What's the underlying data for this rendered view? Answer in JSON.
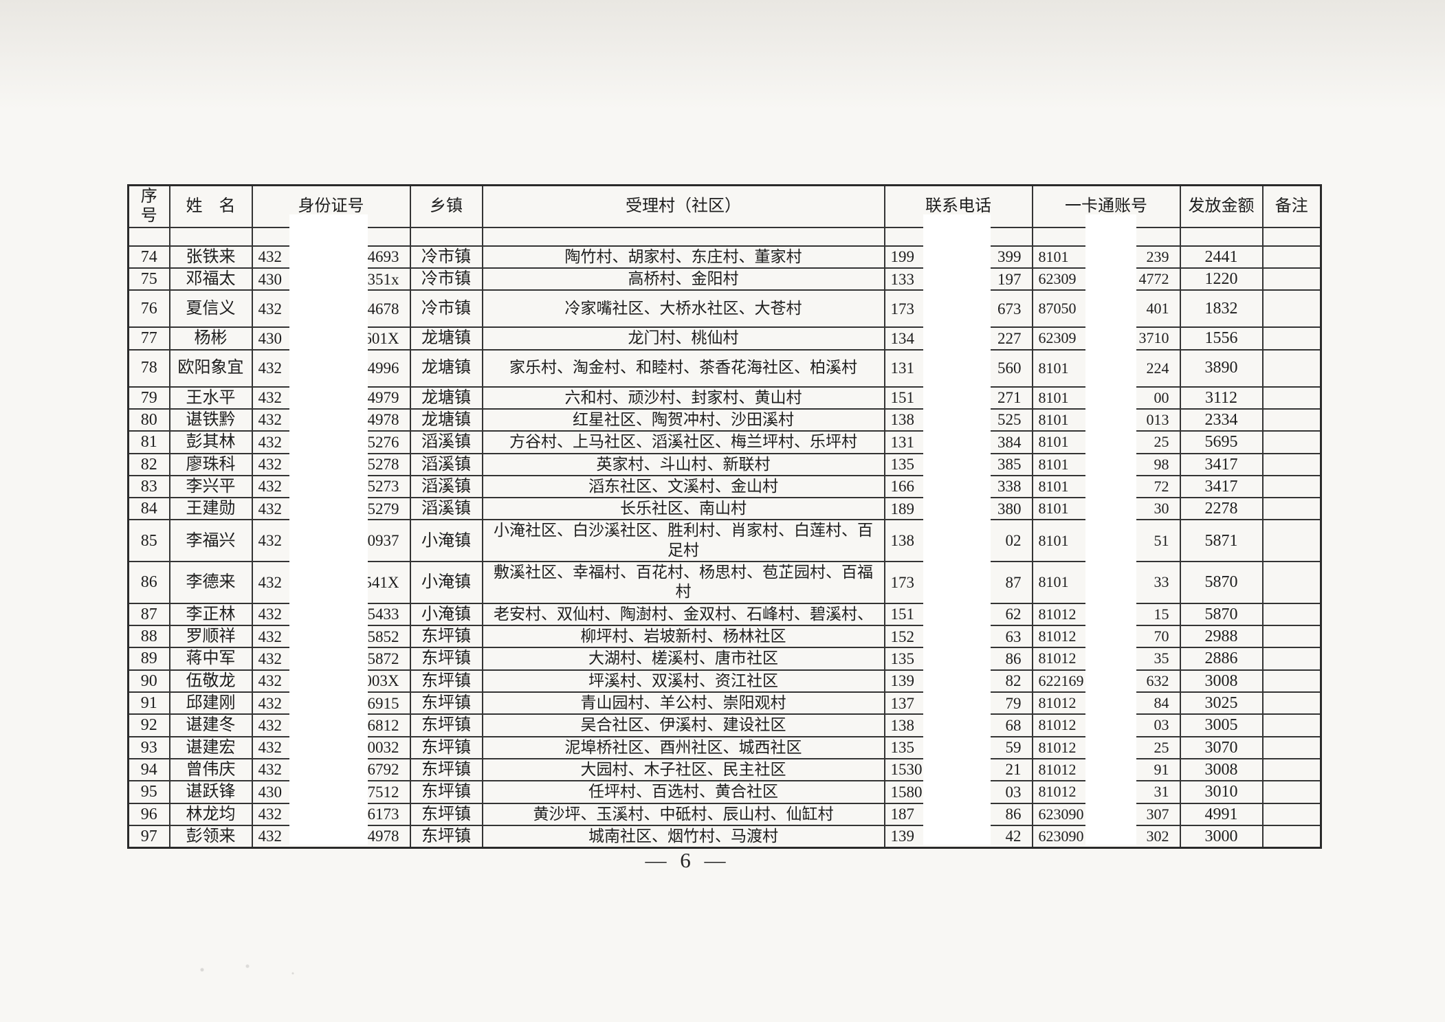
{
  "document": {
    "page_label": "— 6 —"
  },
  "table": {
    "headers": [
      "序号",
      "姓　名",
      "身份证号",
      "乡镇",
      "受理村（社区）",
      "联系电话",
      "一卡通账号",
      "发放金额",
      "备注"
    ],
    "rows": [
      {
        "no": "74",
        "name": "张铁来",
        "id_left": "432",
        "id_right": "4693",
        "township": "冷市镇",
        "villages": "陶竹村、胡家村、东庄村、董家村",
        "phone_left": "199",
        "phone_right": "399",
        "card_left": "8101",
        "card_right": "239",
        "amount": "2441",
        "note": ""
      },
      {
        "no": "75",
        "name": "邓福太",
        "id_left": "430",
        "id_right": "351x",
        "township": "冷市镇",
        "villages": "高桥村、金阳村",
        "phone_left": "133",
        "phone_right": "197",
        "card_left": "62309",
        "card_right": "4772",
        "amount": "1220",
        "note": ""
      },
      {
        "no": "76",
        "name": "夏信义",
        "id_left": "432",
        "id_right": "4678",
        "township": "冷市镇",
        "villages": "冷家嘴社区、大桥水社区、大苍村",
        "phone_left": "173",
        "phone_right": "673",
        "card_left": "87050",
        "card_right": "401",
        "amount": "1832",
        "note": "",
        "tall": true
      },
      {
        "no": "77",
        "name": "杨彬",
        "id_left": "430",
        "id_right": "601X",
        "township": "龙塘镇",
        "villages": "龙门村、桃仙村",
        "phone_left": "134",
        "phone_right": "227",
        "card_left": "62309",
        "card_right": "3710",
        "amount": "1556",
        "note": ""
      },
      {
        "no": "78",
        "name": "欧阳象宜",
        "id_left": "432",
        "id_right": "4996",
        "township": "龙塘镇",
        "villages": "家乐村、淘金村、和睦村、茶香花海社区、柏溪村",
        "phone_left": "131",
        "phone_right": "560",
        "card_left": "8101",
        "card_right": "224",
        "amount": "3890",
        "note": "",
        "tall": true
      },
      {
        "no": "79",
        "name": "王水平",
        "id_left": "432",
        "id_right": "4979",
        "township": "龙塘镇",
        "villages": "六和村、顽沙村、封家村、黄山村",
        "phone_left": "151",
        "phone_right": "271",
        "card_left": "8101",
        "card_right": "00",
        "amount": "3112",
        "note": ""
      },
      {
        "no": "80",
        "name": "谌铁黔",
        "id_left": "432",
        "id_right": "4978",
        "township": "龙塘镇",
        "villages": "红星社区、陶贺冲村、沙田溪村",
        "phone_left": "138",
        "phone_right": "525",
        "card_left": "8101",
        "card_right": "013",
        "amount": "2334",
        "note": ""
      },
      {
        "no": "81",
        "name": "彭其林",
        "id_left": "432",
        "id_right": "5276",
        "township": "滔溪镇",
        "villages": "方谷村、上马社区、滔溪社区、梅兰坪村、乐坪村",
        "phone_left": "131",
        "phone_right": "384",
        "card_left": "8101",
        "card_right": "25",
        "amount": "5695",
        "note": ""
      },
      {
        "no": "82",
        "name": "廖珠科",
        "id_left": "432",
        "id_right": "5278",
        "township": "滔溪镇",
        "villages": "英家村、斗山村、新联村",
        "phone_left": "135",
        "phone_right": "385",
        "card_left": "8101",
        "card_right": "98",
        "amount": "3417",
        "note": ""
      },
      {
        "no": "83",
        "name": "李兴平",
        "id_left": "432",
        "id_right": "5273",
        "township": "滔溪镇",
        "villages": "滔东社区、文溪村、金山村",
        "phone_left": "166",
        "phone_right": "338",
        "card_left": "8101",
        "card_right": "72",
        "amount": "3417",
        "note": ""
      },
      {
        "no": "84",
        "name": "王建勋",
        "id_left": "432",
        "id_right": "5279",
        "township": "滔溪镇",
        "villages": "长乐社区、南山村",
        "phone_left": "189",
        "phone_right": "380",
        "card_left": "8101",
        "card_right": "30",
        "amount": "2278",
        "note": ""
      },
      {
        "no": "85",
        "name": "李福兴",
        "id_left": "432",
        "id_right": "0937",
        "township": "小淹镇",
        "villages": "小淹社区、白沙溪社区、胜利村、肖家村、白莲村、百足村",
        "phone_left": "138",
        "phone_right": "02",
        "card_left": "8101",
        "card_right": "51",
        "amount": "5871",
        "note": ""
      },
      {
        "no": "86",
        "name": "李德来",
        "id_left": "432",
        "id_right": "541X",
        "township": "小淹镇",
        "villages": "敷溪社区、幸福村、百花村、杨思村、苞芷园村、百福村",
        "phone_left": "173",
        "phone_right": "87",
        "card_left": "8101",
        "card_right": "33",
        "amount": "5870",
        "note": ""
      },
      {
        "no": "87",
        "name": "李正林",
        "id_left": "432",
        "id_right": "5433",
        "township": "小淹镇",
        "villages": "老安村、双仙村、陶澍村、金双村、石峰村、碧溪村、",
        "phone_left": "151",
        "phone_right": "62",
        "card_left": "81012",
        "card_right": "15",
        "amount": "5870",
        "note": ""
      },
      {
        "no": "88",
        "name": "罗顺祥",
        "id_left": "432",
        "id_right": "5852",
        "township": "东坪镇",
        "villages": "柳坪村、岩坡新村、杨林社区",
        "phone_left": "152",
        "phone_right": "63",
        "card_left": "81012",
        "card_right": "70",
        "amount": "2988",
        "note": ""
      },
      {
        "no": "89",
        "name": "蒋中军",
        "id_left": "432",
        "id_right": "5872",
        "township": "东坪镇",
        "villages": "大湖村、槎溪村、唐市社区",
        "phone_left": "135",
        "phone_right": "86",
        "card_left": "81012",
        "card_right": "35",
        "amount": "2886",
        "note": ""
      },
      {
        "no": "90",
        "name": "伍敬龙",
        "id_left": "432",
        "id_right": "003X",
        "township": "东坪镇",
        "villages": "坪溪村、双溪村、资江社区",
        "phone_left": "139",
        "phone_right": "82",
        "card_left": "622169",
        "card_right": "632",
        "amount": "3008",
        "note": ""
      },
      {
        "no": "91",
        "name": "邱建刚",
        "id_left": "432",
        "id_right": "6915",
        "township": "东坪镇",
        "villages": "青山园村、羊公村、崇阳观村",
        "phone_left": "137",
        "phone_right": "79",
        "card_left": "81012",
        "card_right": "84",
        "amount": "3025",
        "note": ""
      },
      {
        "no": "92",
        "name": "谌建冬",
        "id_left": "432",
        "id_right": "6812",
        "township": "东坪镇",
        "villages": "吴合社区、伊溪村、建设社区",
        "phone_left": "138",
        "phone_right": "68",
        "card_left": "81012",
        "card_right": "03",
        "amount": "3005",
        "note": ""
      },
      {
        "no": "93",
        "name": "谌建宏",
        "id_left": "432",
        "id_right": "0032",
        "township": "东坪镇",
        "villages": "泥埠桥社区、酉州社区、城西社区",
        "phone_left": "135",
        "phone_right": "59",
        "card_left": "81012",
        "card_right": "25",
        "amount": "3070",
        "note": ""
      },
      {
        "no": "94",
        "name": "曾伟庆",
        "id_left": "432",
        "id_right": "6792",
        "township": "东坪镇",
        "villages": "大园村、木子社区、民主社区",
        "phone_left": "1530",
        "phone_right": "21",
        "card_left": "81012",
        "card_right": "91",
        "amount": "3008",
        "note": ""
      },
      {
        "no": "95",
        "name": "谌跃锋",
        "id_left": "430",
        "id_right": "7512",
        "township": "东坪镇",
        "villages": "任坪村、百选村、黄合社区",
        "phone_left": "1580",
        "phone_right": "03",
        "card_left": "81012",
        "card_right": "31",
        "amount": "3010",
        "note": ""
      },
      {
        "no": "96",
        "name": "林龙均",
        "id_left": "432",
        "id_right": "6173",
        "township": "东坪镇",
        "villages": "黄沙坪、玉溪村、中砥村、辰山村、仙缸村",
        "phone_left": "187",
        "phone_right": "86",
        "card_left": "623090",
        "card_right": "307",
        "amount": "4991",
        "note": ""
      },
      {
        "no": "97",
        "name": "彭领来",
        "id_left": "432",
        "id_right": "4978",
        "township": "东坪镇",
        "villages": "城南社区、烟竹村、马渡村",
        "phone_left": "139",
        "phone_right": "42",
        "card_left": "623090",
        "card_right": "302",
        "amount": "3000",
        "note": ""
      }
    ]
  },
  "redaction_color": "#ffffff"
}
